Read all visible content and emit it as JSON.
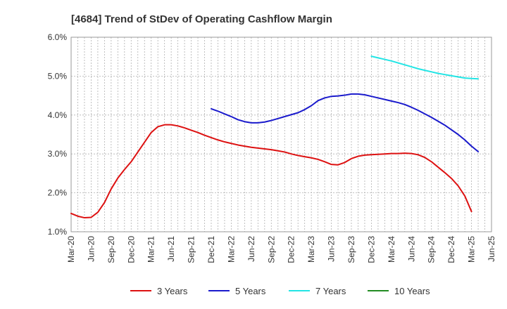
{
  "chart_data": {
    "type": "line",
    "title": "[4684]  Trend of StDev of Operating Cashflow Margin",
    "xlabel": "",
    "ylabel": "",
    "ylim": [
      1.0,
      6.0
    ],
    "y_ticks": [
      "1.0%",
      "2.0%",
      "3.0%",
      "4.0%",
      "5.0%",
      "6.0%"
    ],
    "x_ticks": [
      "Mar-20",
      "Jun-20",
      "Sep-20",
      "Dec-20",
      "Mar-21",
      "Jun-21",
      "Sep-21",
      "Dec-21",
      "Mar-22",
      "Jun-22",
      "Sep-22",
      "Dec-22",
      "Mar-23",
      "Jun-23",
      "Sep-23",
      "Dec-23",
      "Mar-24",
      "Jun-24",
      "Sep-24",
      "Dec-24",
      "Mar-25",
      "Jun-25"
    ],
    "grid": true,
    "legend_position": "bottom",
    "series": [
      {
        "name": "3 Years",
        "color": "#dd1111",
        "points": [
          [
            "2020-03",
            1.47
          ],
          [
            "2020-04",
            1.4
          ],
          [
            "2020-05",
            1.36
          ],
          [
            "2020-06",
            1.37
          ],
          [
            "2020-07",
            1.5
          ],
          [
            "2020-08",
            1.75
          ],
          [
            "2020-09",
            2.1
          ],
          [
            "2020-10",
            2.38
          ],
          [
            "2020-11",
            2.6
          ],
          [
            "2020-12",
            2.8
          ],
          [
            "2021-01",
            3.05
          ],
          [
            "2021-02",
            3.3
          ],
          [
            "2021-03",
            3.55
          ],
          [
            "2021-04",
            3.7
          ],
          [
            "2021-05",
            3.75
          ],
          [
            "2021-06",
            3.75
          ],
          [
            "2021-07",
            3.72
          ],
          [
            "2021-08",
            3.67
          ],
          [
            "2021-09",
            3.61
          ],
          [
            "2021-10",
            3.55
          ],
          [
            "2021-11",
            3.48
          ],
          [
            "2021-12",
            3.42
          ],
          [
            "2022-01",
            3.36
          ],
          [
            "2022-02",
            3.31
          ],
          [
            "2022-03",
            3.27
          ],
          [
            "2022-04",
            3.23
          ],
          [
            "2022-05",
            3.2
          ],
          [
            "2022-06",
            3.17
          ],
          [
            "2022-07",
            3.15
          ],
          [
            "2022-08",
            3.13
          ],
          [
            "2022-09",
            3.11
          ],
          [
            "2022-10",
            3.08
          ],
          [
            "2022-11",
            3.05
          ],
          [
            "2022-12",
            3.0
          ],
          [
            "2023-01",
            2.96
          ],
          [
            "2023-02",
            2.93
          ],
          [
            "2023-03",
            2.9
          ],
          [
            "2023-04",
            2.86
          ],
          [
            "2023-05",
            2.8
          ],
          [
            "2023-06",
            2.73
          ],
          [
            "2023-07",
            2.72
          ],
          [
            "2023-08",
            2.78
          ],
          [
            "2023-09",
            2.88
          ],
          [
            "2023-10",
            2.94
          ],
          [
            "2023-11",
            2.97
          ],
          [
            "2023-12",
            2.98
          ],
          [
            "2024-01",
            2.99
          ],
          [
            "2024-02",
            3.0
          ],
          [
            "2024-03",
            3.01
          ],
          [
            "2024-04",
            3.01
          ],
          [
            "2024-05",
            3.02
          ],
          [
            "2024-06",
            3.01
          ],
          [
            "2024-07",
            2.98
          ],
          [
            "2024-08",
            2.91
          ],
          [
            "2024-09",
            2.8
          ],
          [
            "2024-10",
            2.66
          ],
          [
            "2024-11",
            2.52
          ],
          [
            "2024-12",
            2.37
          ],
          [
            "2025-01",
            2.18
          ],
          [
            "2025-02",
            1.92
          ],
          [
            "2025-03",
            1.52
          ]
        ]
      },
      {
        "name": "5 Years",
        "color": "#1a1acc",
        "points": [
          [
            "2021-12",
            4.16
          ],
          [
            "2022-01",
            4.1
          ],
          [
            "2022-02",
            4.03
          ],
          [
            "2022-03",
            3.96
          ],
          [
            "2022-04",
            3.88
          ],
          [
            "2022-05",
            3.83
          ],
          [
            "2022-06",
            3.8
          ],
          [
            "2022-07",
            3.8
          ],
          [
            "2022-08",
            3.82
          ],
          [
            "2022-09",
            3.86
          ],
          [
            "2022-10",
            3.91
          ],
          [
            "2022-11",
            3.96
          ],
          [
            "2022-12",
            4.01
          ],
          [
            "2023-01",
            4.06
          ],
          [
            "2023-02",
            4.14
          ],
          [
            "2023-03",
            4.24
          ],
          [
            "2023-04",
            4.37
          ],
          [
            "2023-05",
            4.44
          ],
          [
            "2023-06",
            4.48
          ],
          [
            "2023-07",
            4.49
          ],
          [
            "2023-08",
            4.51
          ],
          [
            "2023-09",
            4.54
          ],
          [
            "2023-10",
            4.54
          ],
          [
            "2023-11",
            4.52
          ],
          [
            "2023-12",
            4.48
          ],
          [
            "2024-01",
            4.44
          ],
          [
            "2024-02",
            4.4
          ],
          [
            "2024-03",
            4.36
          ],
          [
            "2024-04",
            4.32
          ],
          [
            "2024-05",
            4.27
          ],
          [
            "2024-06",
            4.2
          ],
          [
            "2024-07",
            4.12
          ],
          [
            "2024-08",
            4.03
          ],
          [
            "2024-09",
            3.94
          ],
          [
            "2024-10",
            3.84
          ],
          [
            "2024-11",
            3.74
          ],
          [
            "2024-12",
            3.62
          ],
          [
            "2025-01",
            3.5
          ],
          [
            "2025-02",
            3.36
          ],
          [
            "2025-03",
            3.2
          ],
          [
            "2025-04",
            3.06
          ]
        ]
      },
      {
        "name": "7 Years",
        "color": "#22e5e5",
        "points": [
          [
            "2023-12",
            5.51
          ],
          [
            "2024-01",
            5.47
          ],
          [
            "2024-02",
            5.43
          ],
          [
            "2024-03",
            5.39
          ],
          [
            "2024-04",
            5.34
          ],
          [
            "2024-05",
            5.29
          ],
          [
            "2024-06",
            5.24
          ],
          [
            "2024-07",
            5.19
          ],
          [
            "2024-08",
            5.15
          ],
          [
            "2024-09",
            5.11
          ],
          [
            "2024-10",
            5.07
          ],
          [
            "2024-11",
            5.04
          ],
          [
            "2024-12",
            5.01
          ],
          [
            "2025-01",
            4.98
          ],
          [
            "2025-02",
            4.95
          ],
          [
            "2025-03",
            4.94
          ],
          [
            "2025-04",
            4.93
          ]
        ]
      },
      {
        "name": "10 Years",
        "color": "#228b22",
        "points": []
      }
    ]
  }
}
